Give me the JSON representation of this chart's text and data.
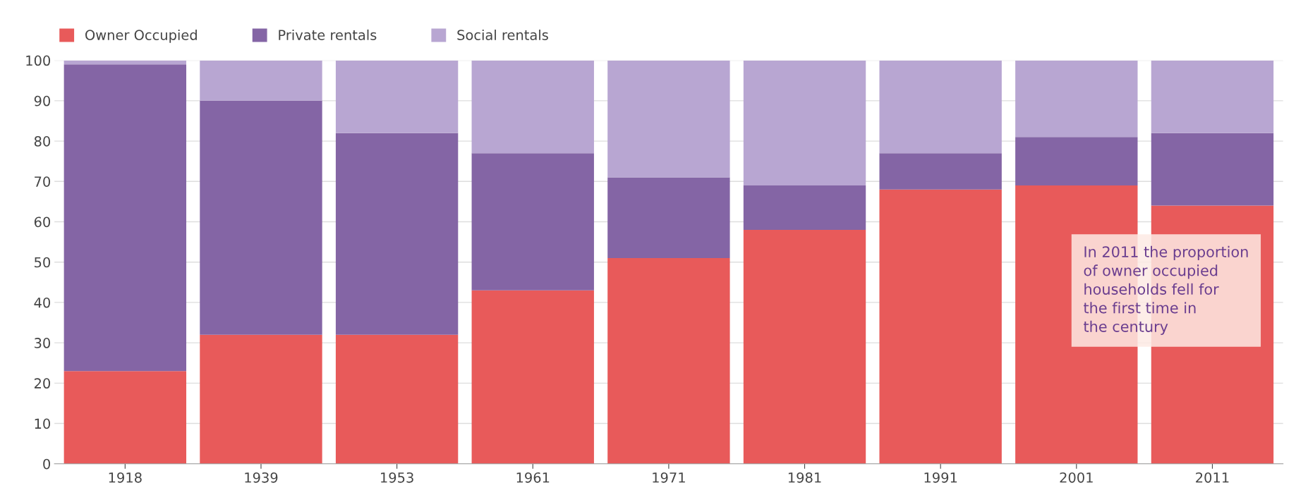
{
  "chart_data": {
    "type": "bar",
    "stacked": true,
    "categories": [
      "1918",
      "1939",
      "1953",
      "1961",
      "1971",
      "1981",
      "1991",
      "2001",
      "2011"
    ],
    "series": [
      {
        "name": "Owner Occupied",
        "color": "#e85a5a",
        "values": [
          23,
          32,
          32,
          43,
          51,
          58,
          68,
          69,
          64
        ]
      },
      {
        "name": "Private rentals",
        "color": "#8465a5",
        "values": [
          76,
          58,
          50,
          34,
          20,
          11,
          9,
          12,
          18
        ]
      },
      {
        "name": "Social rentals",
        "color": "#b8a6d2",
        "values": [
          1,
          10,
          18,
          23,
          29,
          31,
          23,
          19,
          18
        ]
      }
    ],
    "ylim": [
      0,
      100
    ],
    "yticks": [
      0,
      10,
      20,
      30,
      40,
      50,
      60,
      70,
      80,
      90,
      100
    ],
    "grid": "y",
    "legend": "top left",
    "annotations": [
      "In 2011 the proportion\nof owner occupied\nhouseholds fell for\nthe first time in\nthe century"
    ]
  }
}
